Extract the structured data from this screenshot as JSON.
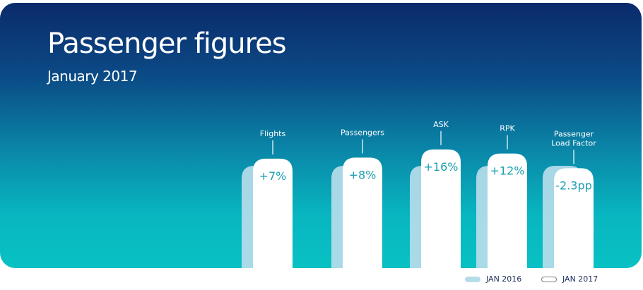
{
  "title": "Passenger figures",
  "subtitle": "January 2017",
  "colors": {
    "prev_bar": "#b6dcea",
    "curr_bar": "#ffffff",
    "label_text": "#1a9fb0",
    "category_text": "#ffffff"
  },
  "chart_data": {
    "type": "bar",
    "title": "Passenger figures",
    "subtitle": "January 2017",
    "categories": [
      "Flights",
      "Passengers",
      "ASK",
      "RPK",
      "Passenger\nLoad Factor"
    ],
    "series": [
      {
        "name": "JAN 2016",
        "values": [
          100,
          100,
          100,
          100,
          100
        ]
      },
      {
        "name": "JAN 2017",
        "values": [
          107,
          108,
          116,
          112,
          97.7
        ]
      }
    ],
    "data_labels": [
      "+7%",
      "+8%",
      "+16%",
      "+12%",
      "-2.3pp"
    ],
    "legend": {
      "position": "bottom-right",
      "items": [
        "JAN 2016",
        "JAN 2017"
      ]
    }
  }
}
